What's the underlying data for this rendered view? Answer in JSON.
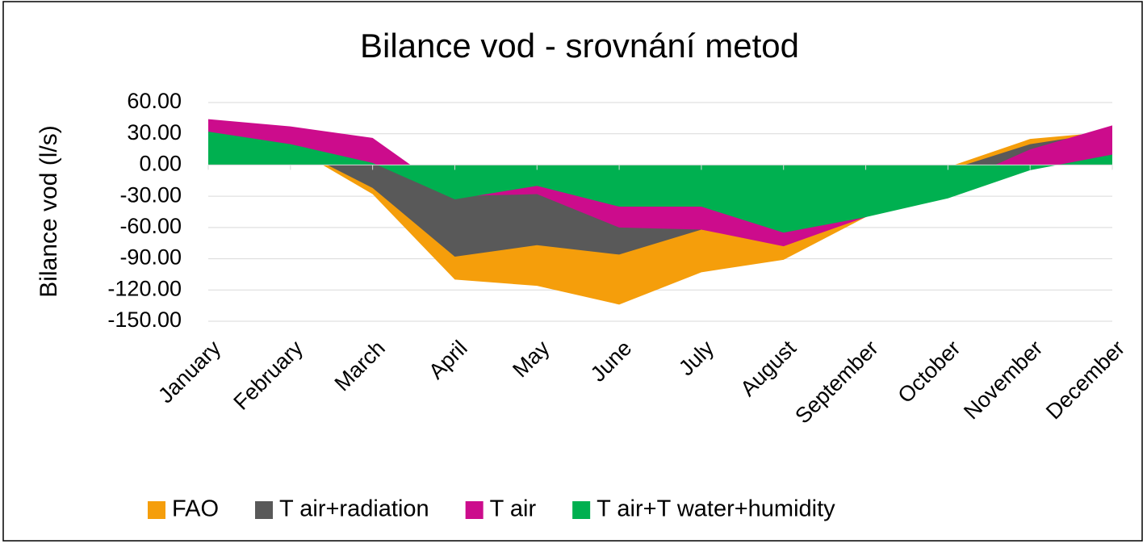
{
  "chart_data": {
    "type": "area",
    "title": "Bilance vod - srovnání metod",
    "y_label": "Bilance vod (l/s)",
    "categories": [
      "January",
      "February",
      "March",
      "April",
      "May",
      "June",
      "July",
      "August",
      "September",
      "October",
      "November",
      "December"
    ],
    "series": [
      {
        "name": "FAO",
        "color": "#f59e0b",
        "values": [
          30,
          18,
          -28,
          -110,
          -116,
          -134,
          -103,
          -91,
          -50,
          -2,
          25,
          32
        ]
      },
      {
        "name": "T air+radiation",
        "color": "#595959",
        "values": [
          30,
          18,
          -22,
          -88,
          -77,
          -86,
          -62,
          -70,
          -50,
          -5,
          20,
          32
        ]
      },
      {
        "name": "T air",
        "color": "#cc0c8c",
        "values": [
          44,
          37,
          26,
          -30,
          -28,
          -60,
          -62,
          -78,
          -50,
          -20,
          15,
          38
        ]
      },
      {
        "name": "T air+T water+humidity",
        "color": "#00b050",
        "values": [
          32,
          20,
          2,
          -33,
          -20,
          -40,
          -40,
          -65,
          -50,
          -32,
          -5,
          10
        ]
      }
    ],
    "ylim": [
      -150,
      60
    ],
    "yticks": [
      {
        "value": 60,
        "label": "60.00"
      },
      {
        "value": 30,
        "label": "30.00"
      },
      {
        "value": 0,
        "label": "0.00"
      },
      {
        "value": -30,
        "label": "-30.00"
      },
      {
        "value": -60,
        "label": "-60.00"
      },
      {
        "value": -90,
        "label": "-90.00"
      },
      {
        "value": -120,
        "label": "-120.00"
      },
      {
        "value": -150,
        "label": "-150.00"
      }
    ],
    "grid": true,
    "legend": "bottom"
  }
}
